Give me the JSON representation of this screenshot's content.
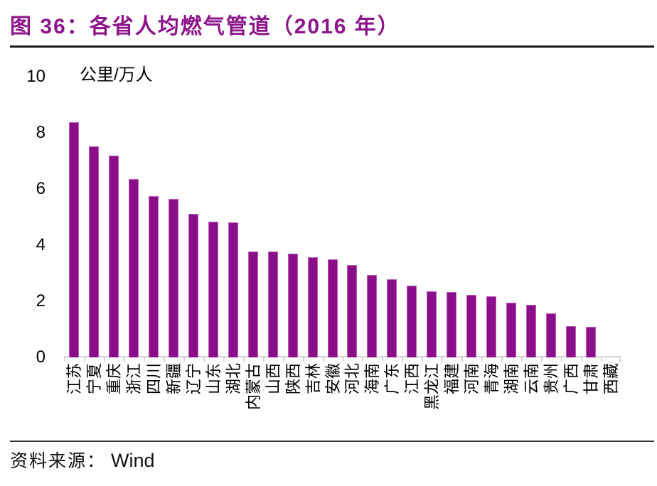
{
  "header": {
    "figure_title": "图 36：各省人均燃气管道（2016 年）"
  },
  "chart_data": {
    "type": "bar",
    "title": "各省人均燃气管道（2016年）",
    "unit_label": "公里/万人",
    "xlabel": "",
    "ylabel": "公里/万人",
    "ylim": [
      0,
      10
    ],
    "yticks": [
      0,
      2,
      4,
      6,
      8,
      10
    ],
    "grid": false,
    "legend": "none",
    "categories": [
      "江苏",
      "宁夏",
      "重庆",
      "浙江",
      "四川",
      "新疆",
      "辽宁",
      "山东",
      "湖北",
      "内蒙古",
      "山西",
      "陕西",
      "吉林",
      "安徽",
      "河北",
      "海南",
      "广东",
      "江西",
      "黑龙江",
      "福建",
      "河南",
      "青海",
      "湖南",
      "云南",
      "贵州",
      "广西",
      "甘肃",
      "西藏"
    ],
    "values": [
      8.38,
      7.52,
      7.19,
      6.35,
      5.75,
      5.65,
      5.11,
      4.84,
      4.81,
      3.77,
      3.77,
      3.7,
      3.57,
      3.49,
      3.29,
      2.94,
      2.78,
      2.56,
      2.36,
      2.33,
      2.23,
      2.18,
      1.95,
      1.87,
      1.57,
      1.11,
      1.09,
      0
    ],
    "bar_color": "#8A0D8A",
    "bar_border_color": "#C05EBC",
    "axis_color": "#D4D4D4",
    "title_color": "#8E148C"
  },
  "footer": {
    "source_label": "资料来源：",
    "source_value": "Wind"
  }
}
